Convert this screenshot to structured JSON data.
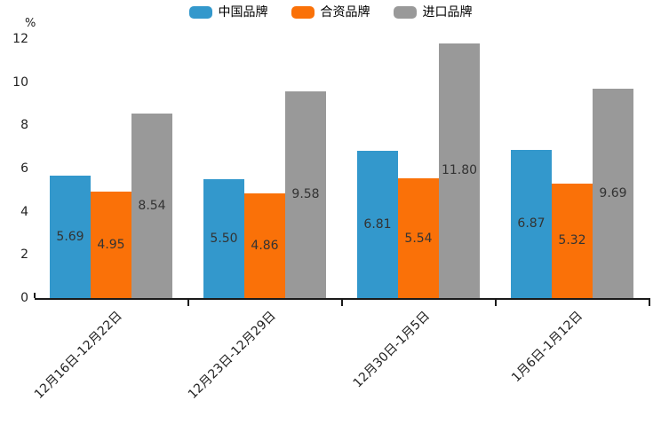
{
  "chart_data": {
    "type": "bar",
    "title": "",
    "unit_label": "%",
    "categories": [
      "12月16日-12月22日",
      "12月23日-12月29日",
      "12月30日-1月5日",
      "1月6日-1月12日"
    ],
    "series": [
      {
        "name": "中国品牌",
        "color": "#3398cc",
        "values": [
          5.69,
          5.5,
          6.81,
          6.87
        ]
      },
      {
        "name": "合资品牌",
        "color": "#fa7108",
        "values": [
          4.95,
          4.86,
          5.54,
          5.32
        ]
      },
      {
        "name": "进口品牌",
        "color": "#999999",
        "values": [
          8.54,
          9.58,
          11.8,
          9.69
        ]
      }
    ],
    "ylim": [
      0,
      12
    ],
    "yticks": [
      0,
      2,
      4,
      6,
      8,
      10,
      12
    ],
    "value_label_decimals": 2,
    "grid": false,
    "legend_position": "top",
    "bar_label_position": "inside-center",
    "axis_color": "#1a1a1a",
    "value_label_color": "#333333"
  }
}
